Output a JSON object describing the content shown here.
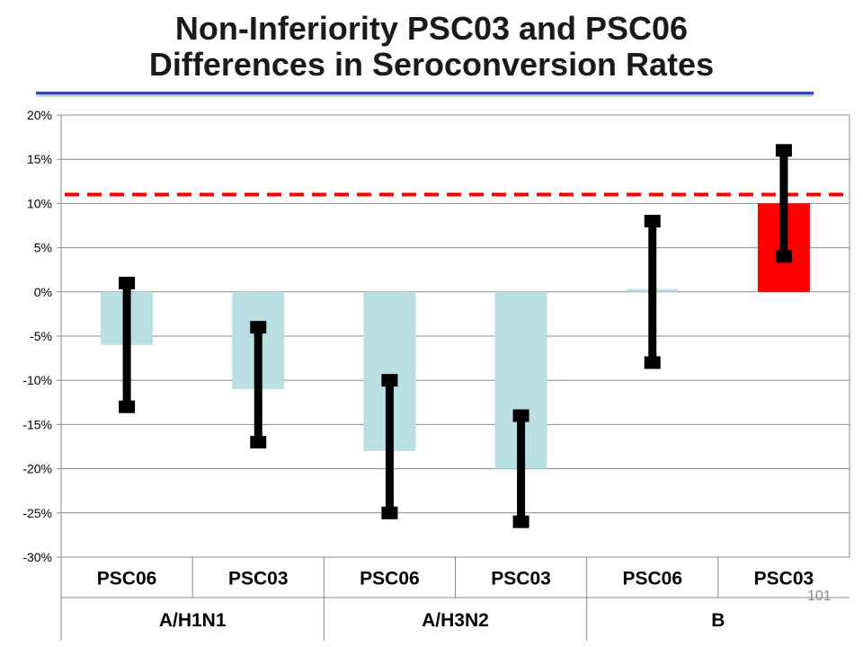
{
  "title": {
    "line1": "Non-Inferiority PSC03 and PSC06",
    "line2": "Differences in Seroconversion Rates"
  },
  "slide_number": "101",
  "chart_data": {
    "type": "bar",
    "categories": [
      "PSC06",
      "PSC03",
      "PSC06",
      "PSC03",
      "PSC06",
      "PSC03"
    ],
    "groups": [
      {
        "label": "A/H1N1",
        "span": 2
      },
      {
        "label": "A/H3N2",
        "span": 2
      },
      {
        "label": "B",
        "span": 2
      }
    ],
    "values": [
      -6,
      -11,
      -18,
      -20,
      0.3,
      10
    ],
    "error_bars": [
      {
        "low": -13,
        "high": 1
      },
      {
        "low": -17,
        "high": -4
      },
      {
        "low": -25,
        "high": -10
      },
      {
        "low": -26,
        "high": -14
      },
      {
        "low": -8,
        "high": 8
      },
      {
        "low": 4,
        "high": 16
      }
    ],
    "bar_colors": [
      "#b9dfe3",
      "#b9dfe3",
      "#b9dfe3",
      "#b9dfe3",
      "#b9dfe3",
      "#ff0000"
    ],
    "reference_line": {
      "value": 11,
      "color": "#ff0000",
      "style": "dashed"
    },
    "ylim": [
      -30,
      20
    ],
    "yticks": [
      20,
      15,
      10,
      5,
      0,
      -5,
      -10,
      -15,
      -20,
      -25,
      -30
    ],
    "ytick_labels": [
      "20%",
      "15%",
      "10%",
      "5%",
      "0%",
      "-5%",
      "-10%",
      "-15%",
      "-20%",
      "-25%",
      "-30%"
    ],
    "grid": true,
    "xlabel": "",
    "ylabel": ""
  }
}
